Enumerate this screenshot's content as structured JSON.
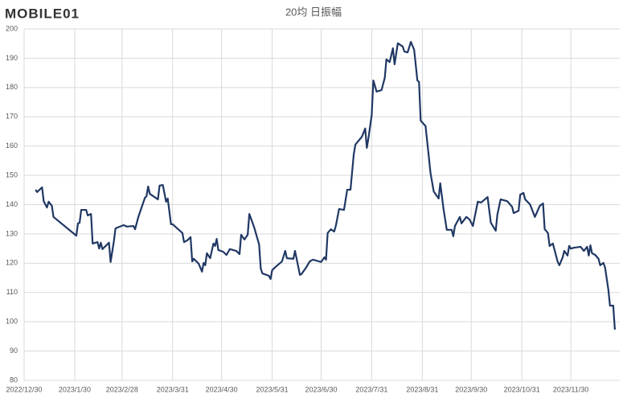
{
  "logo": "MOBILE01",
  "chart_data": {
    "type": "line",
    "title": "20均 日振幅",
    "grid": true,
    "xlim": [
      "2022/12/30",
      "2023/12/30"
    ],
    "xticks": [
      "2022/12/30",
      "2023/1/30",
      "2023/2/28",
      "2023/3/31",
      "2023/4/30",
      "2023/5/31",
      "2023/6/30",
      "2023/7/31",
      "2023/8/31",
      "2023/9/30",
      "2023/10/31",
      "2023/11/30"
    ],
    "ylim": [
      80,
      200
    ],
    "yticks": [
      80,
      90,
      100,
      110,
      120,
      130,
      140,
      150,
      160,
      170,
      180,
      190,
      200
    ],
    "x": [
      "2023/1/6",
      "2023/1/7",
      "2023/1/10",
      "2023/1/11",
      "2023/1/13",
      "2023/1/14",
      "2023/1/16",
      "2023/1/17",
      "2023/1/31",
      "2023/2/1",
      "2023/2/2",
      "2023/2/3",
      "2023/2/6",
      "2023/2/7",
      "2023/2/9",
      "2023/2/10",
      "2023/2/13",
      "2023/2/14",
      "2023/2/15",
      "2023/2/16",
      "2023/2/20",
      "2023/2/21",
      "2023/2/23",
      "2023/2/24",
      "2023/3/1",
      "2023/3/3",
      "2023/3/7",
      "2023/3/8",
      "2023/3/10",
      "2023/3/14",
      "2023/3/15",
      "2023/3/16",
      "2023/3/17",
      "2023/3/22",
      "2023/3/23",
      "2023/3/25",
      "2023/3/27",
      "2023/3/28",
      "2023/3/30",
      "2023/3/31",
      "2023/4/6",
      "2023/4/7",
      "2023/4/9",
      "2023/4/11",
      "2023/4/12",
      "2023/4/13",
      "2023/4/16",
      "2023/4/18",
      "2023/4/19",
      "2023/4/20",
      "2023/4/21",
      "2023/4/23",
      "2023/4/25",
      "2023/4/26",
      "2023/4/27",
      "2023/4/28",
      "2023/5/1",
      "2023/5/3",
      "2023/5/5",
      "2023/5/9",
      "2023/5/11",
      "2023/5/12",
      "2023/5/14",
      "2023/5/16",
      "2023/5/17",
      "2023/5/20",
      "2023/5/23",
      "2023/5/24",
      "2023/5/25",
      "2023/5/29",
      "2023/5/30",
      "2023/5/31",
      "2023/6/2",
      "2023/6/6",
      "2023/6/8",
      "2023/6/9",
      "2023/6/13",
      "2023/6/14",
      "2023/6/15",
      "2023/6/17",
      "2023/6/18",
      "2023/6/21",
      "2023/6/23",
      "2023/6/25",
      "2023/6/30",
      "2023/7/2",
      "2023/7/3",
      "2023/7/4",
      "2023/7/6",
      "2023/7/8",
      "2023/7/9",
      "2023/7/11",
      "2023/7/14",
      "2023/7/16",
      "2023/7/18",
      "2023/7/20",
      "2023/7/21",
      "2023/7/25",
      "2023/7/27",
      "2023/7/28",
      "2023/7/29",
      "2023/7/31",
      "2023/8/1",
      "2023/8/3",
      "2023/8/6",
      "2023/8/8",
      "2023/8/9",
      "2023/8/11",
      "2023/8/13",
      "2023/8/14",
      "2023/8/16",
      "2023/8/19",
      "2023/8/20",
      "2023/8/22",
      "2023/8/24",
      "2023/8/26",
      "2023/8/28",
      "2023/8/29",
      "2023/8/30",
      "2023/9/2",
      "2023/9/4",
      "2023/9/5",
      "2023/9/7",
      "2023/9/10",
      "2023/9/11",
      "2023/9/13",
      "2023/9/15",
      "2023/9/18",
      "2023/9/19",
      "2023/9/20",
      "2023/9/23",
      "2023/9/24",
      "2023/9/27",
      "2023/9/29",
      "2023/10/1",
      "2023/10/4",
      "2023/10/6",
      "2023/10/10",
      "2023/10/12",
      "2023/10/15",
      "2023/10/16",
      "2023/10/18",
      "2023/10/22",
      "2023/10/25",
      "2023/10/26",
      "2023/10/29",
      "2023/10/30",
      "2023/11/1",
      "2023/11/2",
      "2023/11/5",
      "2023/11/8",
      "2023/11/11",
      "2023/11/13",
      "2023/11/14",
      "2023/11/16",
      "2023/11/17",
      "2023/11/19",
      "2023/11/22",
      "2023/11/23",
      "2023/11/25",
      "2023/11/26",
      "2023/11/28",
      "2023/11/29",
      "2023/11/30",
      "2023/12/2",
      "2023/12/6",
      "2023/12/8",
      "2023/12/10",
      "2023/12/11",
      "2023/12/12",
      "2023/12/13",
      "2023/12/15",
      "2023/12/17",
      "2023/12/18",
      "2023/12/20",
      "2023/12/21",
      "2023/12/23",
      "2023/12/24",
      "2023/12/26",
      "2023/12/27"
    ],
    "series": [
      {
        "color": "#203864",
        "values": [
          145.1,
          144.3,
          145.9,
          141.2,
          139.0,
          141.0,
          139.6,
          135.8,
          129.4,
          133.6,
          133.8,
          138.2,
          138.2,
          136.3,
          136.8,
          126.7,
          127.2,
          125.0,
          127.0,
          124.8,
          127.0,
          120.4,
          127.5,
          131.9,
          133.0,
          132.5,
          132.7,
          131.6,
          135.8,
          142.3,
          142.9,
          146.2,
          143.7,
          141.8,
          146.5,
          146.7,
          141.0,
          142.1,
          133.3,
          133.3,
          130.3,
          127.2,
          127.8,
          128.9,
          120.6,
          121.5,
          119.8,
          117.1,
          120.1,
          119.3,
          123.4,
          121.7,
          126.7,
          125.9,
          128.3,
          124.5,
          123.9,
          122.8,
          124.8,
          124.2,
          123.1,
          129.7,
          128.1,
          129.7,
          136.8,
          132.2,
          126.4,
          118.2,
          116.5,
          115.7,
          114.6,
          117.6,
          118.7,
          120.6,
          124.2,
          121.7,
          121.5,
          124.2,
          121.5,
          116.0,
          116.3,
          118.7,
          120.6,
          121.2,
          120.4,
          122.0,
          121.2,
          130.3,
          131.6,
          130.8,
          132.7,
          138.5,
          138.2,
          145.1,
          145.1,
          157.2,
          160.5,
          163.2,
          166.0,
          159.4,
          162.7,
          170.6,
          182.4,
          178.6,
          179.1,
          183.3,
          189.6,
          188.7,
          193.4,
          187.9,
          195.1,
          194.0,
          192.3,
          192.0,
          195.6,
          192.9,
          182.4,
          181.9,
          168.7,
          166.8,
          156.3,
          150.9,
          144.5,
          142.1,
          147.3,
          138.5,
          131.4,
          131.4,
          129.2,
          132.7,
          135.8,
          133.6,
          135.8,
          134.9,
          132.7,
          141.0,
          140.7,
          142.6,
          133.8,
          131.1,
          136.6,
          141.8,
          141.2,
          139.3,
          137.1,
          137.9,
          143.4,
          144.0,
          141.8,
          140.1,
          135.8,
          139.6,
          140.4,
          131.6,
          130.3,
          125.9,
          126.7,
          120.4,
          119.3,
          122.0,
          124.2,
          122.6,
          125.9,
          125.0,
          125.3,
          125.6,
          124.2,
          125.6,
          122.6,
          126.1,
          123.4,
          122.8,
          121.5,
          119.3,
          120.1,
          118.5,
          111.0,
          105.5,
          105.5,
          97.3
        ]
      }
    ]
  }
}
